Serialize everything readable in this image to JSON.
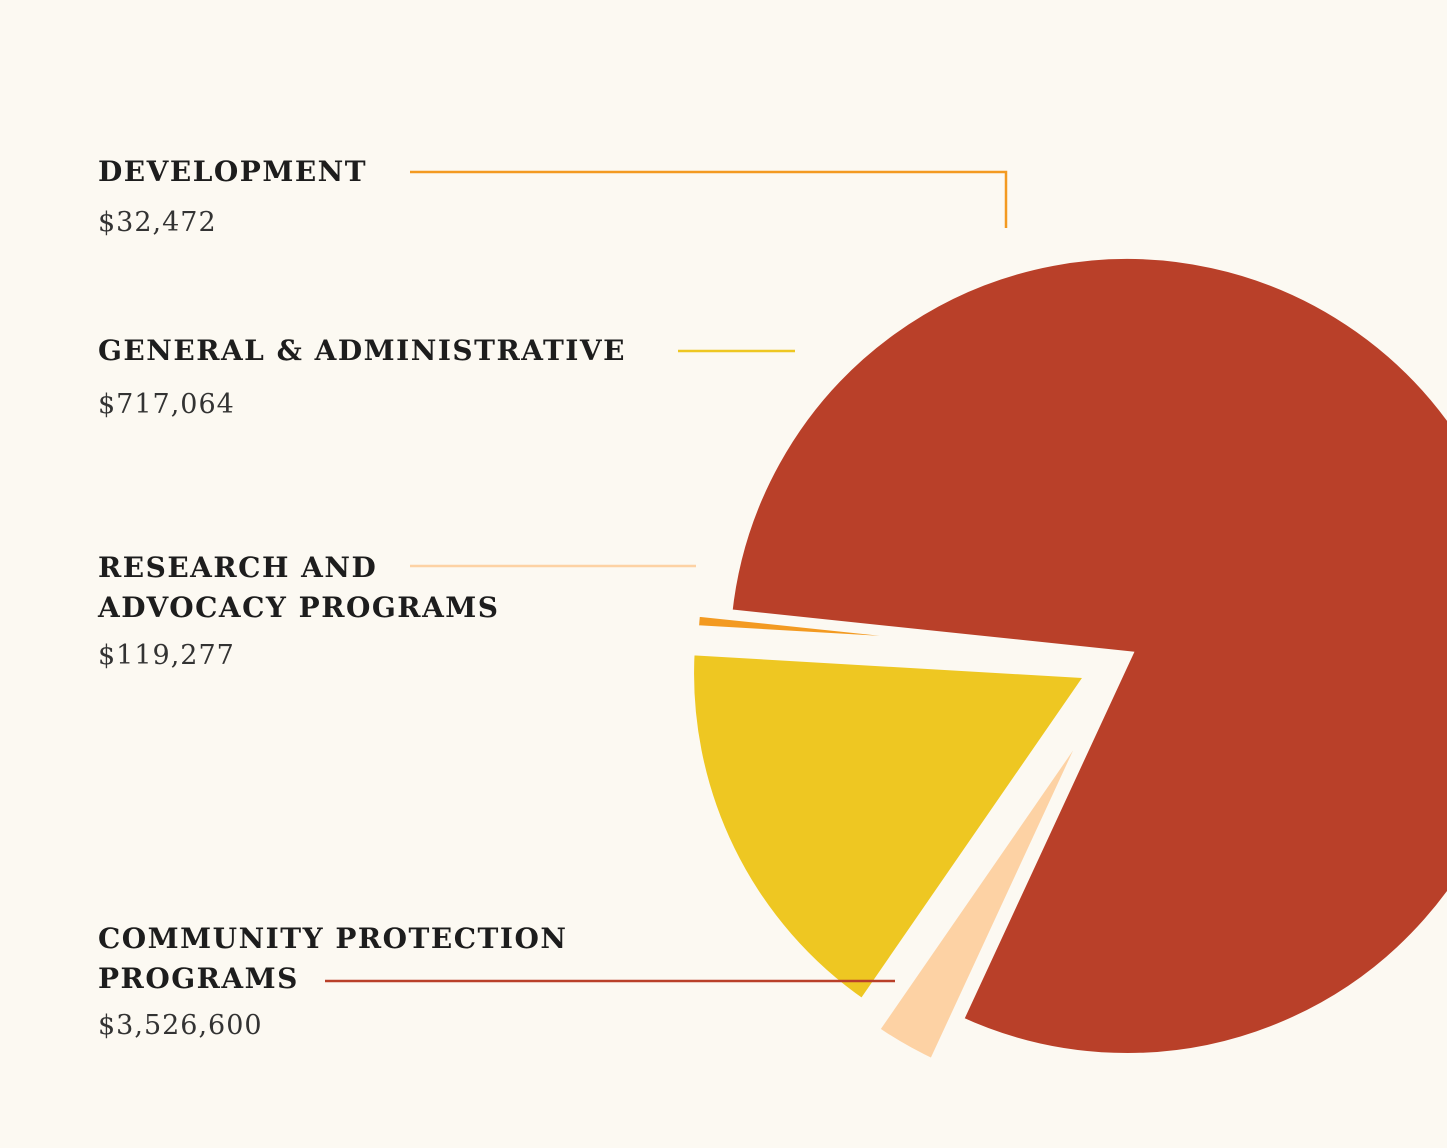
{
  "chart_data": {
    "type": "pie",
    "title": "",
    "colors": {
      "background": "#fcf9f2",
      "development": "#f39a21",
      "general_administrative": "#eec722",
      "research_advocacy": "#fdd2a4",
      "community_protection": "#b94029"
    },
    "slices": [
      {
        "key": "development",
        "name_lines": [
          "DEVELOPMENT"
        ],
        "value": 32472,
        "value_label": "$32,472",
        "color": "#f39a21"
      },
      {
        "key": "general_administrative",
        "name_lines": [
          "GENERAL & ADMINISTRATIVE"
        ],
        "value": 717064,
        "value_label": "$717,064",
        "color": "#eec722"
      },
      {
        "key": "research_advocacy",
        "name_lines": [
          "RESEARCH AND",
          "ADVOCACY PROGRAMS"
        ],
        "value": 119277,
        "value_label": "$119,277",
        "color": "#fdd2a4"
      },
      {
        "key": "community_protection",
        "name_lines": [
          "COMMUNITY PROTECTION",
          "PROGRAMS"
        ],
        "value": 3526600,
        "value_label": "$3,526,600",
        "color": "#b94029"
      }
    ]
  }
}
